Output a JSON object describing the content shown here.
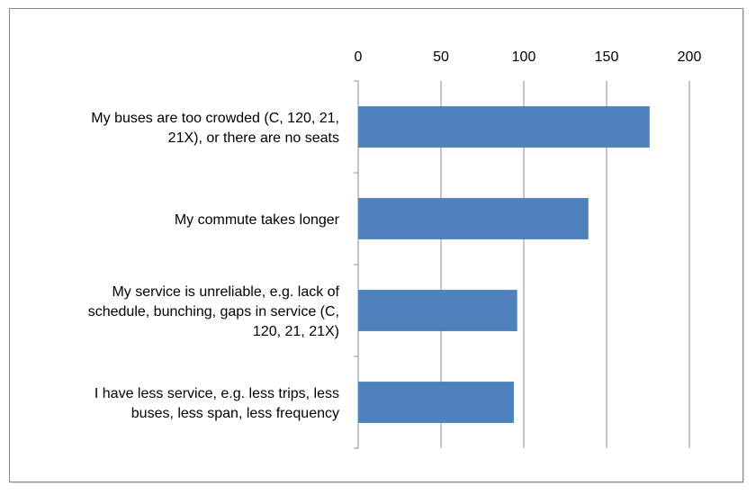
{
  "chart_data": {
    "type": "bar",
    "orientation": "horizontal",
    "categories": [
      [
        "My buses are too crowded (C, 120, 21,",
        "21X), or there are no seats"
      ],
      [
        "My commute takes longer"
      ],
      [
        "My service is unreliable, e.g. lack of",
        "schedule, bunching, gaps in service (C,",
        "120, 21, 21X)"
      ],
      [
        "I have less service, e.g. less trips, less",
        "buses, less span, less frequency"
      ]
    ],
    "values": [
      176,
      139,
      96,
      94
    ],
    "xlim": [
      0,
      200
    ],
    "x_ticks": [
      0,
      50,
      100,
      150,
      200
    ],
    "x_axis_position": "top",
    "grid": "vertical",
    "legend": "none",
    "bar_color": "#4f81bd",
    "title": "",
    "xlabel": "",
    "ylabel": ""
  }
}
